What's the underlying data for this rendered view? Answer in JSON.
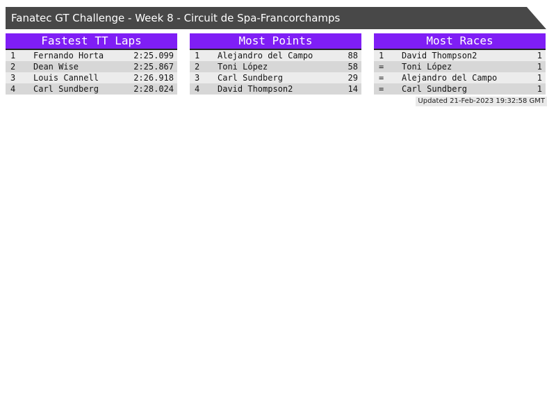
{
  "page": {
    "title_bar": "Fanatec GT Challenge - Week 8 - Circuit de Spa-Francorchamps",
    "updated": "Updated 21-Feb-2023 19:32:58 GMT"
  },
  "colors": {
    "bar_bg": "#484848",
    "accent_purple": "#7f1ef5",
    "row_light": "#ececec",
    "row_dark": "#d7d7d7",
    "separator": "#222222",
    "updated_bg": "#e9e9e9"
  },
  "tables": [
    {
      "title": "Fastest TT Laps",
      "rows": [
        {
          "rank": "1",
          "name": "Fernando Horta",
          "value": "2:25.099"
        },
        {
          "rank": "2",
          "name": "Dean Wise",
          "value": "2:25.867"
        },
        {
          "rank": "3",
          "name": "Louis Cannell",
          "value": "2:26.918"
        },
        {
          "rank": "4",
          "name": "Carl Sundberg",
          "value": "2:28.024"
        }
      ]
    },
    {
      "title": "Most Points",
      "rows": [
        {
          "rank": "1",
          "name": "Alejandro del Campo",
          "value": "88"
        },
        {
          "rank": "2",
          "name": "Toni López",
          "value": "58"
        },
        {
          "rank": "3",
          "name": "Carl Sundberg",
          "value": "29"
        },
        {
          "rank": "4",
          "name": "David Thompson2",
          "value": "14"
        }
      ]
    },
    {
      "title": "Most Races",
      "rows": [
        {
          "rank": "1",
          "name": "David Thompson2",
          "value": "1"
        },
        {
          "rank": "=",
          "name": "Toni López",
          "value": "1"
        },
        {
          "rank": "=",
          "name": "Alejandro del Campo",
          "value": "1"
        },
        {
          "rank": "=",
          "name": "Carl Sundberg",
          "value": "1"
        }
      ]
    }
  ]
}
